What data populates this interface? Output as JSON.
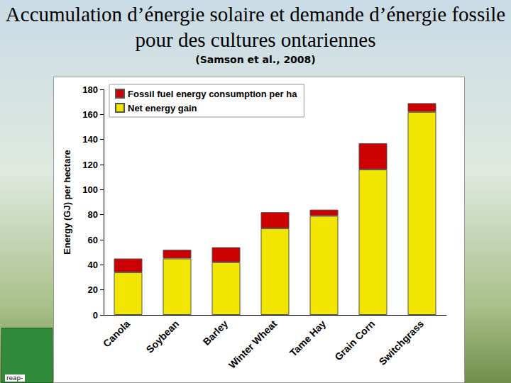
{
  "chart_data": {
    "type": "bar",
    "title": "Accumulation d’énergie solaire et demande d’énergie fossile pour des cultures ontariennes",
    "subtitle": "(Samson et al., 2008)",
    "logo": "reap-",
    "y_label": "Energy (GJ) per hectare",
    "categories": [
      "Canola",
      "Soybean",
      "Barley",
      "Winter Wheat",
      "Tame Hay",
      "Grain Corn",
      "Switchgrass"
    ],
    "series": [
      {
        "name": "Net energy gain",
        "color": "#f2e600",
        "values": [
          34,
          45,
          42,
          69,
          79,
          116,
          162
        ]
      },
      {
        "name": "Fossil fuel energy consumption per ha",
        "color": "#cc0000",
        "values": [
          11,
          7,
          12,
          13,
          5,
          21,
          7
        ]
      }
    ],
    "stacked": true,
    "ylim": [
      0,
      180
    ],
    "yticks": [
      0,
      20,
      40,
      60,
      80,
      100,
      120,
      140,
      160,
      180
    ],
    "grid": false,
    "legend": "upper left"
  }
}
